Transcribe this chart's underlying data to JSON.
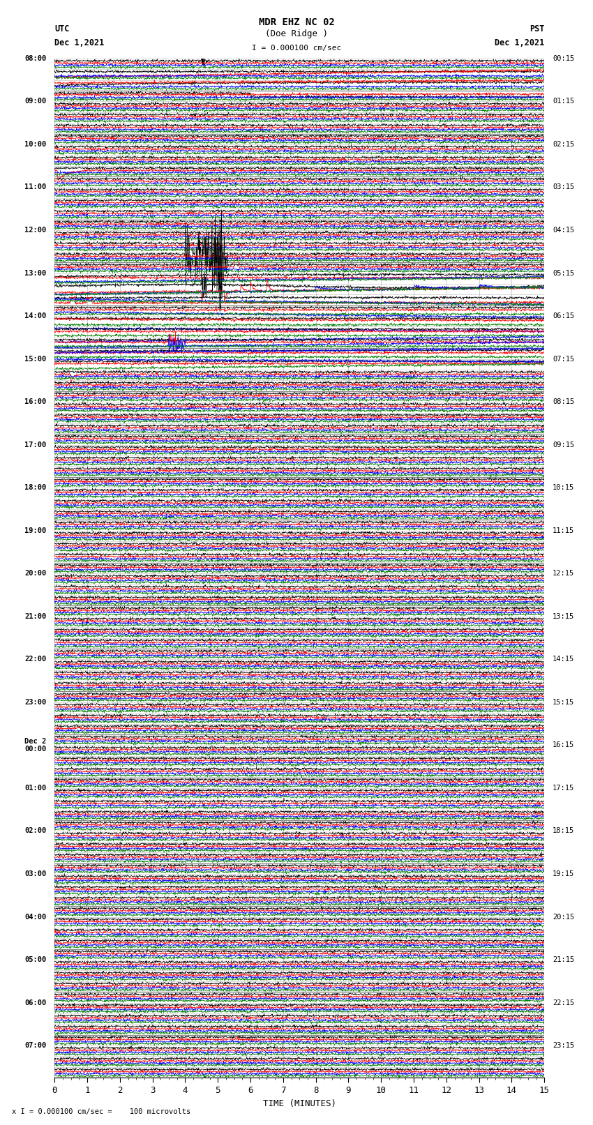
{
  "title_line1": "MDR EHZ NC 02",
  "title_line2": "(Doe Ridge )",
  "scale_label": "I = 0.000100 cm/sec",
  "utc_label": "UTC\nDec 1,2021",
  "pst_label": "PST\nDec 1,2021",
  "bottom_label": "x I = 0.000100 cm/sec =    100 microvolts",
  "xlabel": "TIME (MINUTES)",
  "bg_color": "#ffffff",
  "grid_color": "#bbbbbb",
  "trace_colors": [
    "black",
    "red",
    "blue",
    "green"
  ],
  "minutes_per_row": 15,
  "samples_per_minute": 100,
  "utc_start_labels": [
    "08:00",
    "",
    "",
    "",
    "09:00",
    "",
    "",
    "",
    "10:00",
    "",
    "",
    "",
    "11:00",
    "",
    "",
    "",
    "12:00",
    "",
    "",
    "",
    "13:00",
    "",
    "",
    "",
    "14:00",
    "",
    "",
    "",
    "15:00",
    "",
    "",
    "",
    "16:00",
    "",
    "",
    "",
    "17:00",
    "",
    "",
    "",
    "18:00",
    "",
    "",
    "",
    "19:00",
    "",
    "",
    "",
    "20:00",
    "",
    "",
    "",
    "21:00",
    "",
    "",
    "",
    "22:00",
    "",
    "",
    "",
    "23:00",
    "",
    "",
    "",
    "Dec 2\n00:00",
    "",
    "",
    "",
    "01:00",
    "",
    "",
    "",
    "02:00",
    "",
    "",
    "",
    "03:00",
    "",
    "",
    "",
    "04:00",
    "",
    "",
    "",
    "05:00",
    "",
    "",
    "",
    "06:00",
    "",
    "",
    "",
    "07:00",
    "",
    ""
  ],
  "pst_labels": [
    "00:15",
    "",
    "",
    "",
    "01:15",
    "",
    "",
    "",
    "02:15",
    "",
    "",
    "",
    "03:15",
    "",
    "",
    "",
    "04:15",
    "",
    "",
    "",
    "05:15",
    "",
    "",
    "",
    "06:15",
    "",
    "",
    "",
    "07:15",
    "",
    "",
    "",
    "08:15",
    "",
    "",
    "",
    "09:15",
    "",
    "",
    "",
    "10:15",
    "",
    "",
    "",
    "11:15",
    "",
    "",
    "",
    "12:15",
    "",
    "",
    "",
    "13:15",
    "",
    "",
    "",
    "14:15",
    "",
    "",
    "",
    "15:15",
    "",
    "",
    "",
    "16:15",
    "",
    "",
    "",
    "17:15",
    "",
    "",
    "",
    "18:15",
    "",
    "",
    "",
    "19:15",
    "",
    "",
    "",
    "20:15",
    "",
    "",
    "",
    "21:15",
    "",
    "",
    "",
    "22:15",
    "",
    "",
    "",
    "23:15",
    "",
    ""
  ]
}
